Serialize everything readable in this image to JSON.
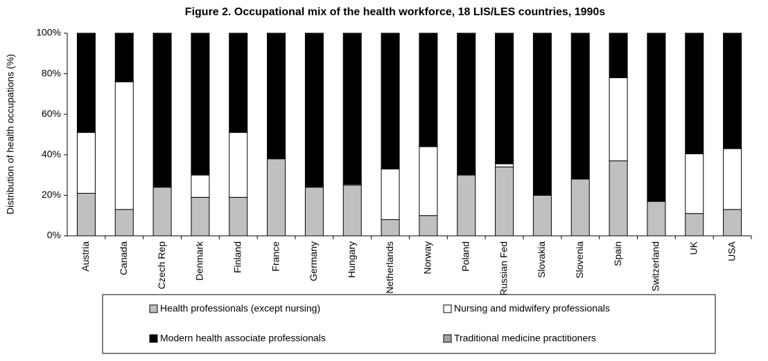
{
  "chart_data": {
    "type": "stacked_bar",
    "title": "Figure 2. Occupational mix of the health workforce, 18 LIS/LES countries, 1990s",
    "y_label": "Distribution of health occupations (%)",
    "categories": [
      "Austria",
      "Canada",
      "Czech Rep",
      "Denmark",
      "Finland",
      "France",
      "Germany",
      "Hungary",
      "Netherlands",
      "Norway",
      "Poland",
      "Russian Fed",
      "Slovakia",
      "Slovenia",
      "Spain",
      "Switzerland",
      "UK",
      "USA"
    ],
    "series": [
      {
        "name": "Health professionals (except nursing)",
        "color": "#c0c0c0",
        "values": [
          21,
          13,
          24,
          19,
          19,
          38,
          24,
          25,
          8,
          10,
          30,
          34,
          20,
          28,
          37,
          17,
          11,
          13
        ]
      },
      {
        "name": "Nursing and midwifery professionals",
        "color": "#ffffff",
        "values": [
          30,
          63,
          0,
          11,
          32,
          0,
          0,
          0.5,
          25,
          34,
          0,
          1.5,
          0,
          0,
          41,
          0,
          29.5,
          30
        ]
      },
      {
        "name": "Modern health associate professionals",
        "color": "#000000",
        "values": [
          49,
          24,
          76,
          70,
          49,
          62,
          76,
          74.5,
          67,
          56,
          70,
          64.5,
          80,
          72,
          22,
          83,
          59.5,
          57
        ]
      },
      {
        "name": "Traditional medicine practitioners",
        "color": "#a0a0a0",
        "values": [
          0,
          0,
          0,
          0,
          0,
          0,
          0,
          0,
          0,
          0,
          0,
          0,
          0,
          0,
          0,
          0,
          0,
          0
        ]
      }
    ],
    "ylim": [
      0,
      100
    ],
    "yticks": [
      {
        "value": 0,
        "label": "0%"
      },
      {
        "value": 20,
        "label": "20%"
      },
      {
        "value": 40,
        "label": "40%"
      },
      {
        "value": 60,
        "label": "60%"
      },
      {
        "value": 80,
        "label": "80%"
      },
      {
        "value": 100,
        "label": "100%"
      }
    ],
    "legend": "bottom"
  }
}
